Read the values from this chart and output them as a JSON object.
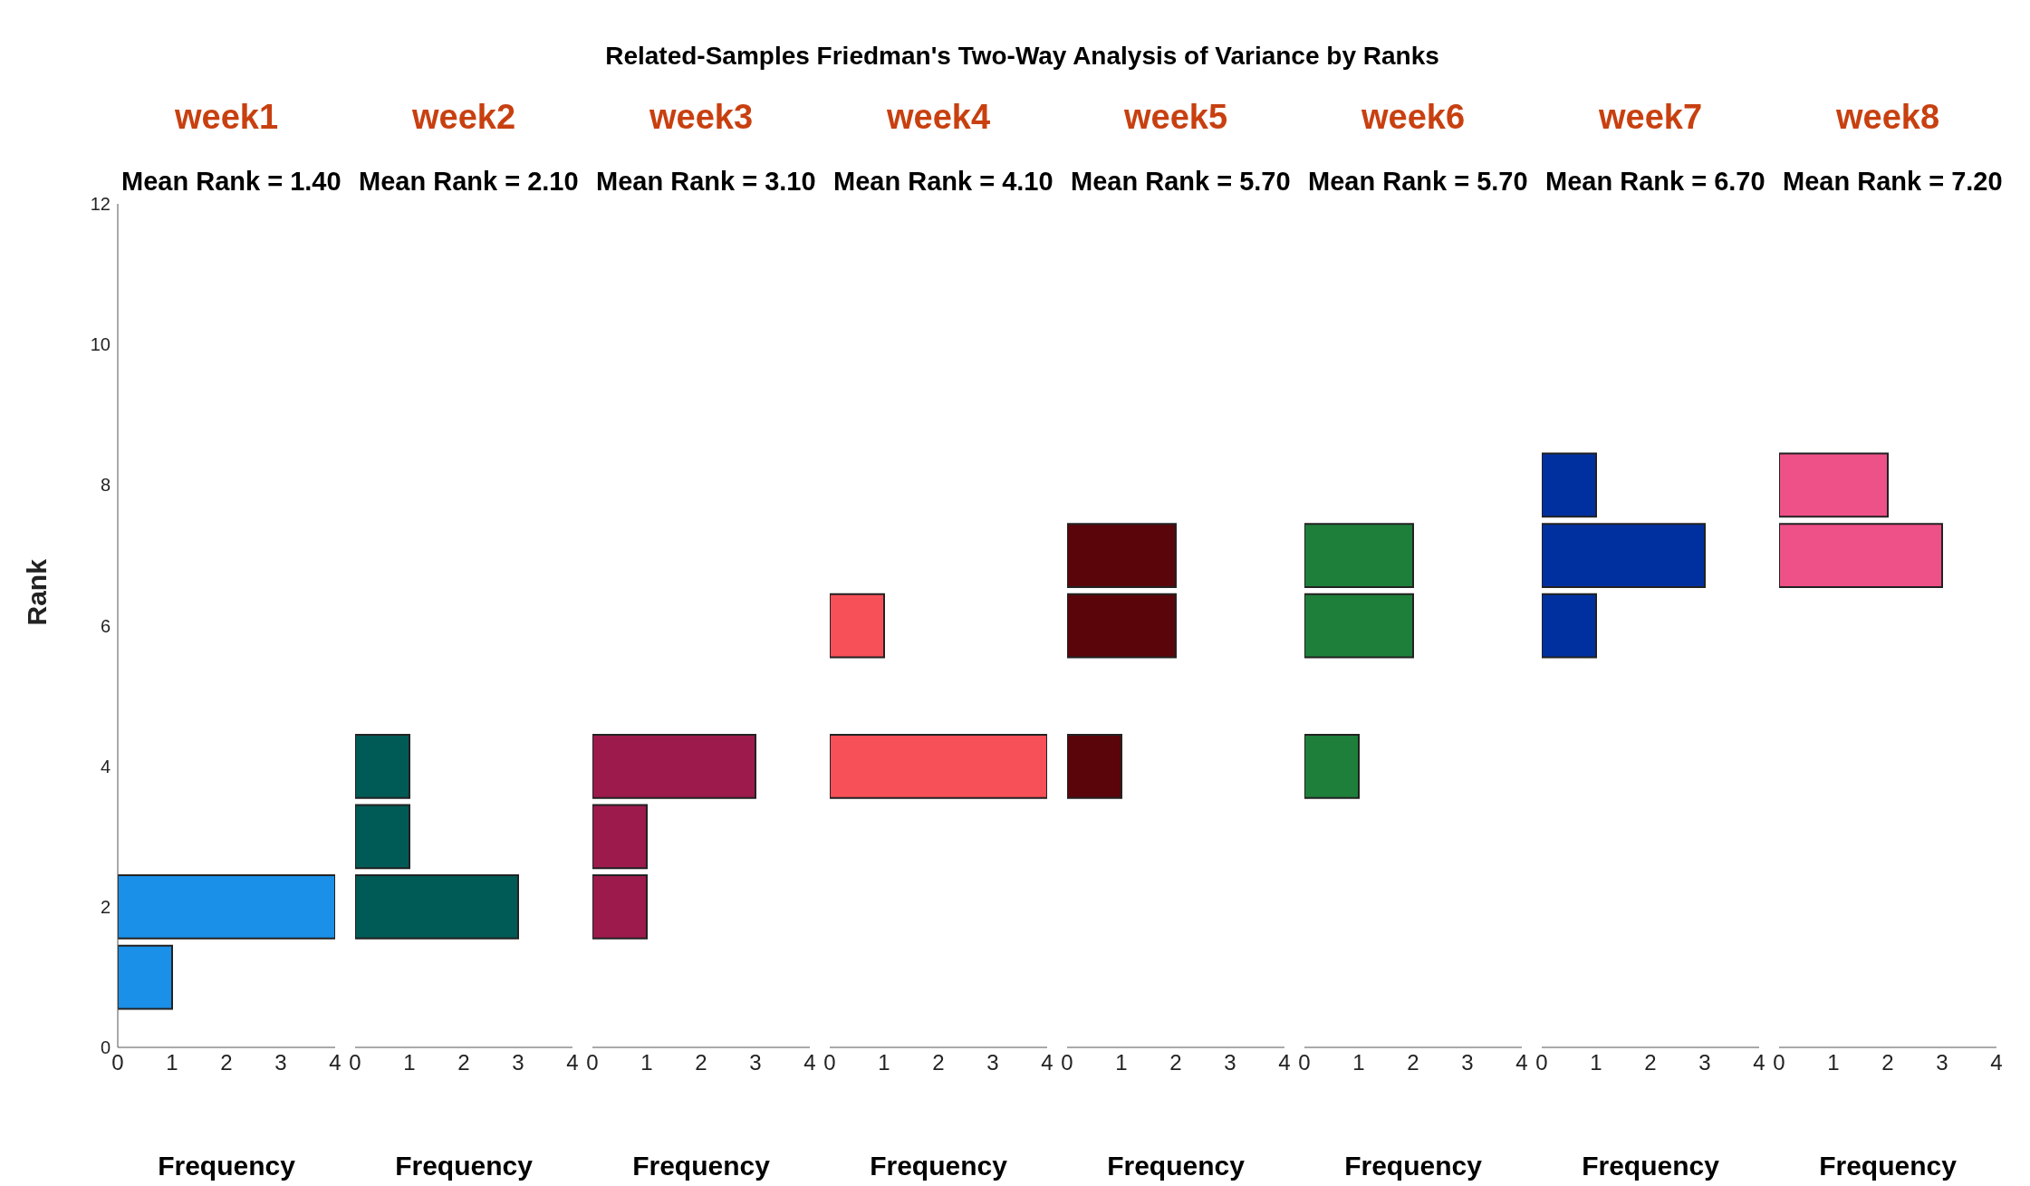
{
  "chart_data": [
    {
      "type": "histogram",
      "orientation": "horizontal",
      "title": "week1",
      "ylabel": "Rank",
      "xlabel": "Frequency",
      "annotations": [
        "Related-Samples Friedman's Two-Way Analysis of Variance by Ranks",
        "Mean Rank = 1.40"
      ],
      "bins": [
        0.5,
        1.5,
        2.5
      ],
      "values": [
        1,
        4
      ],
      "color": "#1a90e8",
      "xlim": [
        0,
        4
      ],
      "xticks": [
        0,
        1,
        2,
        3,
        4
      ],
      "ylim": [
        0,
        12
      ],
      "yticks": [
        0,
        2,
        4,
        6,
        8,
        10,
        12
      ]
    },
    {
      "type": "histogram",
      "orientation": "horizontal",
      "title": "week2",
      "xlabel": "Frequency",
      "annotations": [
        "Mean Rank = 2.10"
      ],
      "bins": [
        1.5,
        2.5,
        3.5,
        4.5
      ],
      "values": [
        3,
        1,
        1
      ],
      "color": "#005a55",
      "xlim": [
        0,
        4
      ],
      "xticks": [
        0,
        1,
        2,
        3,
        4
      ],
      "ylim": [
        0,
        12
      ],
      "yticks": [
        0,
        2,
        4,
        6,
        8,
        10,
        12
      ],
      "tick_labels": "x"
    },
    {
      "type": "histogram",
      "orientation": "horizontal",
      "title": "week3",
      "xlabel": "Frequency",
      "annotations": [
        "Mean Rank = 3.10"
      ],
      "bins": [
        1.5,
        2.5,
        3.5,
        4.5
      ],
      "values": [
        1,
        1,
        3
      ],
      "color": "#9c1a4c",
      "xlim": [
        0,
        4
      ],
      "xticks": [
        0,
        1,
        2,
        3,
        4
      ],
      "ylim": [
        0,
        12
      ],
      "yticks": [
        0,
        2,
        4,
        6,
        8,
        10,
        12
      ],
      "tick_labels": "x"
    },
    {
      "type": "histogram",
      "orientation": "horizontal",
      "title": "week4",
      "xlabel": "Frequency",
      "annotations": [
        "Mean Rank = 4.10"
      ],
      "bins": [
        3.5,
        4.5,
        5.5,
        6.5
      ],
      "values": [
        4,
        0,
        1
      ],
      "color": "#f75058",
      "xlim": [
        0,
        4
      ],
      "xticks": [
        0,
        1,
        2,
        3,
        4
      ],
      "ylim": [
        0,
        12
      ],
      "yticks": [
        0,
        2,
        4,
        6,
        8,
        10,
        12
      ],
      "tick_labels": "x"
    },
    {
      "type": "histogram",
      "orientation": "horizontal",
      "title": "week5",
      "xlabel": "Frequency",
      "annotations": [
        "Mean Rank = 5.70"
      ],
      "bins": [
        3.5,
        4.5,
        5.5,
        6.5,
        7.5
      ],
      "values": [
        1,
        0,
        2,
        2
      ],
      "color": "#5a0509",
      "xlim": [
        0,
        4
      ],
      "xticks": [
        0,
        1,
        2,
        3,
        4
      ],
      "ylim": [
        0,
        12
      ],
      "yticks": [
        0,
        2,
        4,
        6,
        8,
        10,
        12
      ],
      "tick_labels": "x"
    },
    {
      "type": "histogram",
      "orientation": "horizontal",
      "title": "week6",
      "xlabel": "Frequency",
      "annotations": [
        "Mean Rank = 5.70"
      ],
      "bins": [
        3.5,
        4.5,
        5.5,
        6.5,
        7.5
      ],
      "values": [
        1,
        0,
        2,
        2
      ],
      "color": "#1e7f3a",
      "xlim": [
        0,
        4
      ],
      "xticks": [
        0,
        1,
        2,
        3,
        4
      ],
      "ylim": [
        0,
        12
      ],
      "yticks": [
        0,
        2,
        4,
        6,
        8,
        10,
        12
      ],
      "tick_labels": "x"
    },
    {
      "type": "histogram",
      "orientation": "horizontal",
      "title": "week7",
      "xlabel": "Frequency",
      "annotations": [
        "Mean Rank = 6.70"
      ],
      "bins": [
        5.5,
        6.5,
        7.5,
        8.5
      ],
      "values": [
        1,
        3,
        1
      ],
      "color": "#0030a0",
      "xlim": [
        0,
        4
      ],
      "xticks": [
        0,
        1,
        2,
        3,
        4
      ],
      "ylim": [
        0,
        12
      ],
      "yticks": [
        0,
        2,
        4,
        6,
        8,
        10,
        12
      ],
      "tick_labels": "x"
    },
    {
      "type": "histogram",
      "orientation": "horizontal",
      "title": "week8",
      "xlabel": "Frequency",
      "annotations": [
        "Mean Rank = 7.20"
      ],
      "bins": [
        6.5,
        7.5,
        8.5
      ],
      "values": [
        3,
        2
      ],
      "color": "#ee5088",
      "xlim": [
        0,
        4
      ],
      "xticks": [
        0,
        1,
        2,
        3,
        4
      ],
      "ylim": [
        0,
        12
      ],
      "yticks": [
        0,
        2,
        4,
        6,
        8,
        10,
        12
      ],
      "tick_labels": "x"
    }
  ]
}
